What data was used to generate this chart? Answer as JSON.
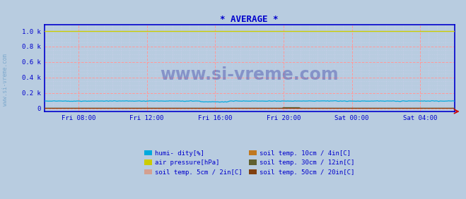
{
  "title": "* AVERAGE *",
  "title_color": "#0000cc",
  "bg_color": "#b8cce0",
  "plot_bg_color": "#b8cce0",
  "grid_major_color": "#ff9999",
  "grid_minor_color": "#d0d0f0",
  "axis_color": "#0000cc",
  "tick_color": "#0000cc",
  "watermark": "www.si-vreme.com",
  "watermark_color": "#00008b",
  "watermark_alpha": 0.28,
  "sidevreme_color": "#4488bb",
  "sidevreme_alpha": 0.5,
  "x_tick_labels": [
    "Fri 08:00",
    "Fri 12:00",
    "Fri 16:00",
    "Fri 20:00",
    "Sat 00:00",
    "Sat 04:00"
  ],
  "x_tick_positions": [
    24,
    72,
    120,
    168,
    216,
    264
  ],
  "y_tick_vals": [
    0.0,
    0.2,
    0.4,
    0.6,
    0.8,
    1.0
  ],
  "y_tick_labels": [
    "0",
    "0.2 k",
    "0.4 k",
    "0.6 k",
    "0.8 k",
    "1.0 k"
  ],
  "ylim": [
    -0.04,
    1.08
  ],
  "xlim": [
    0,
    288
  ],
  "n_points": 289,
  "humidity_level": 0.095,
  "humidity_color": "#00aadd",
  "pressure_level": 0.997,
  "pressure_color": "#cccc00",
  "soil5_level": 0.004,
  "soil5_color": "#d4a090",
  "soil10_level": 0.004,
  "soil10_color": "#c07820",
  "soil30_level": 0.002,
  "soil30_color": "#606030",
  "soil50_level": 0.002,
  "soil50_color": "#804010",
  "legend_entries": [
    {
      "label": "humi- dity[%]",
      "color": "#00aadd"
    },
    {
      "label": "air pressure[hPa]",
      "color": "#cccc00"
    },
    {
      "label": "soil temp. 5cm / 2in[C]",
      "color": "#d4a090"
    },
    {
      "label": "soil temp. 10cm / 4in[C]",
      "color": "#c07820"
    },
    {
      "label": "soil temp. 30cm / 12in[C]",
      "color": "#606030"
    },
    {
      "label": "soil temp. 50cm / 20in[C]",
      "color": "#804010"
    }
  ],
  "figsize": [
    6.59,
    2.82
  ],
  "dpi": 100
}
